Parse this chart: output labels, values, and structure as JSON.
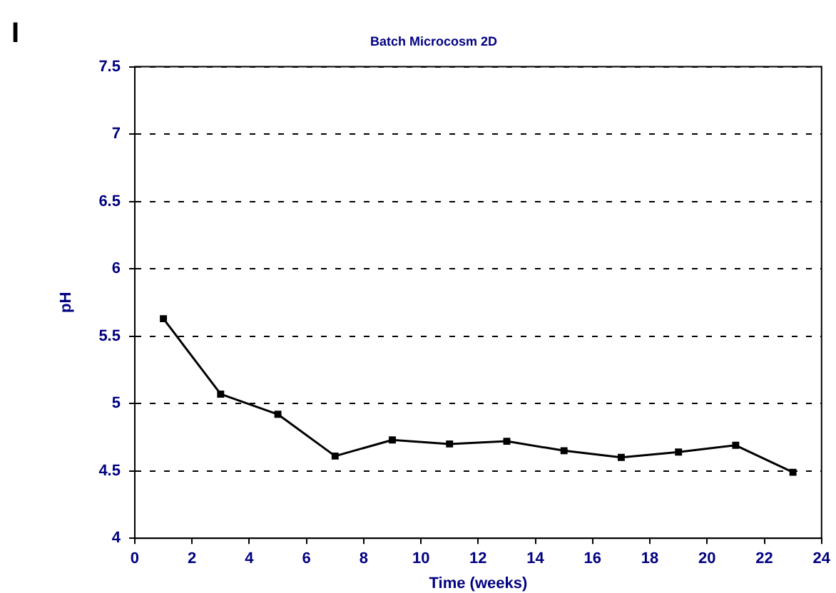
{
  "chart_data": {
    "type": "line",
    "title": "Batch Microcosm 2D",
    "xlabel": "Time (weeks)",
    "ylabel": "pH",
    "annotations": [
      "I"
    ],
    "x": [
      1,
      3,
      5,
      7,
      9,
      11,
      13,
      15,
      17,
      19,
      21,
      23
    ],
    "series": [
      {
        "color": "#000000",
        "values": [
          5.63,
          5.07,
          4.92,
          4.61,
          4.73,
          4.7,
          4.72,
          4.65,
          4.6,
          4.64,
          4.69,
          4.49
        ]
      }
    ],
    "xlim": [
      0,
      24
    ],
    "xticks": [
      0,
      2,
      4,
      6,
      8,
      10,
      12,
      14,
      16,
      18,
      20,
      22,
      24
    ],
    "ylim": [
      4,
      7.5
    ],
    "yticks": [
      4,
      4.5,
      5,
      5.5,
      6,
      6.5,
      7,
      7.5
    ],
    "grid": "y",
    "legend": false,
    "marker": "square",
    "line_style": "solid"
  }
}
